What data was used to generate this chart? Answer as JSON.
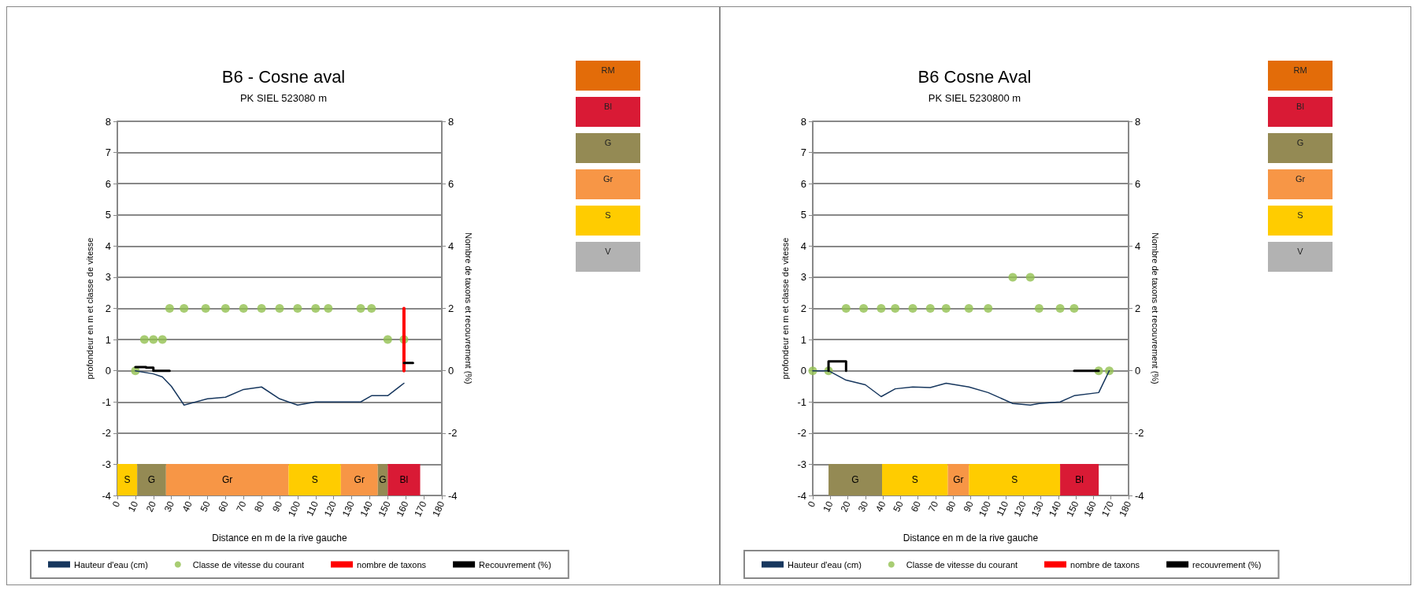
{
  "chart_data": [
    {
      "type": "line",
      "title": "B6 - Cosne aval",
      "subtitle": "PK SIEL 523080 m",
      "xlabel": "Distance en m de la rive gauche",
      "ylabel": "profondeur en m et classe de vitesse",
      "y2label": "Nombre de taxons et recouvrement (%)",
      "xlim": [
        0,
        180
      ],
      "xticks": [
        0,
        10,
        20,
        30,
        40,
        50,
        60,
        70,
        80,
        90,
        100,
        110,
        120,
        130,
        140,
        150,
        160,
        170,
        180
      ],
      "ylim": [
        -4,
        8
      ],
      "yticks": [
        -4,
        -3,
        -2,
        -1,
        0,
        1,
        2,
        3,
        4,
        5,
        6,
        7,
        8
      ],
      "y2lim": [
        -4,
        8
      ],
      "y2ticks": [
        -4,
        -2,
        0,
        2,
        4,
        6,
        8
      ],
      "grid": "y",
      "legend": "bottom",
      "series": [
        {
          "name": "Hauteur d'eau (cm)",
          "type": "line",
          "color": "#17375e",
          "x": [
            10,
            20,
            25,
            30,
            37,
            50,
            60,
            70,
            80,
            90,
            100,
            110,
            120,
            135,
            141,
            150,
            159
          ],
          "values": [
            0,
            -0.1,
            -0.2,
            -0.5,
            -1.1,
            -0.9,
            -0.85,
            -0.6,
            -0.52,
            -0.9,
            -1.1,
            -1.0,
            -1.0,
            -1.0,
            -0.8,
            -0.8,
            -0.4
          ]
        },
        {
          "name": "Classe de vitesse du courant",
          "type": "scatter",
          "marker": "circle",
          "color": "#92c050",
          "x": [
            10,
            15,
            20,
            25,
            29,
            37,
            49,
            60,
            70,
            80,
            90,
            100,
            110,
            117,
            135,
            141,
            150,
            159
          ],
          "values": [
            0,
            1,
            1,
            1,
            2,
            2,
            2,
            2,
            2,
            2,
            2,
            2,
            2,
            2,
            2,
            2,
            1,
            1
          ]
        },
        {
          "name": "nombre de taxons",
          "type": "line",
          "axis": "y2",
          "color": "#ff0000",
          "x": [
            159,
            159
          ],
          "values": [
            0,
            2
          ]
        },
        {
          "name": "Recouvrement (%)",
          "type": "line",
          "axis": "y2",
          "color": "#000000",
          "x": [
            10,
            16,
            16,
            20,
            20,
            29,
            null,
            159,
            164
          ],
          "values": [
            0.12,
            0.12,
            0.1,
            0.1,
            0,
            0,
            null,
            0.25,
            0.25
          ]
        }
      ]
    },
    {
      "type": "bar",
      "orientation": "horizontal",
      "categories": [
        null
      ],
      "xlim": [
        0,
        180
      ],
      "tick_labels": false,
      "series": [
        {
          "name": "S",
          "color": "#ffcc00",
          "base": [
            0
          ],
          "values": [
            11
          ]
        },
        {
          "name": "G",
          "color": "#948a54",
          "base": [
            11
          ],
          "values": [
            16
          ]
        },
        {
          "name": "Gr",
          "color": "#f79646",
          "base": [
            27
          ],
          "values": [
            68
          ]
        },
        {
          "name": "S",
          "color": "#ffcc00",
          "base": [
            95
          ],
          "values": [
            29
          ]
        },
        {
          "name": "Gr",
          "color": "#f79646",
          "base": [
            124
          ],
          "values": [
            20.5
          ]
        },
        {
          "name": "G",
          "color": "#948a54",
          "base": [
            144.5
          ],
          "values": [
            5.5
          ]
        },
        {
          "name": "Bl",
          "color": "#d91a35",
          "base": [
            150
          ],
          "values": [
            18
          ]
        }
      ]
    },
    {
      "type": "other",
      "annotations": [
        "RM",
        "Bl",
        "G",
        "Gr",
        "S",
        "V"
      ]
    },
    {
      "type": "line",
      "title": "B6 Cosne Aval",
      "subtitle": "PK SIEL 5230800 m",
      "xlabel": "Distance en m de la rive gauche",
      "ylabel": "profondeur en m et classe de vitesse",
      "y2label": "Nombre de taxons et recouvrement (%)",
      "xlim": [
        0,
        180
      ],
      "xticks": [
        0,
        10,
        20,
        30,
        40,
        50,
        60,
        70,
        80,
        90,
        100,
        110,
        120,
        130,
        140,
        150,
        160,
        170,
        180
      ],
      "ylim": [
        -4,
        8
      ],
      "yticks": [
        -4,
        -3,
        -2,
        -1,
        0,
        1,
        2,
        3,
        4,
        5,
        6,
        7,
        8
      ],
      "y2lim": [
        -4,
        8
      ],
      "y2ticks": [
        -4,
        -2,
        0,
        2,
        4,
        6,
        8
      ],
      "grid": "y",
      "legend": "bottom",
      "series": [
        {
          "name": "Hauteur d'eau (cm)",
          "type": "line",
          "color": "#17375e",
          "x": [
            0,
            9,
            19,
            30,
            39,
            47,
            57,
            67,
            76,
            89,
            100,
            114,
            124,
            129,
            141,
            149,
            163,
            169
          ],
          "values": [
            0,
            0,
            -0.3,
            -0.45,
            -0.83,
            -0.58,
            -0.52,
            -0.54,
            -0.4,
            -0.52,
            -0.7,
            -1.05,
            -1.1,
            -1.05,
            -1.0,
            -0.8,
            -0.7,
            0
          ]
        },
        {
          "name": "Classe de vitesse du courant",
          "type": "scatter",
          "marker": "circle",
          "color": "#92c050",
          "x": [
            0,
            9,
            19,
            29,
            39,
            47,
            57,
            67,
            76,
            89,
            100,
            114,
            124,
            129,
            141,
            149,
            163,
            169
          ],
          "values": [
            0,
            0,
            2,
            2,
            2,
            2,
            2,
            2,
            2,
            2,
            2,
            3,
            3,
            2,
            2,
            2,
            0,
            0
          ]
        },
        {
          "name": "nombre de taxons",
          "type": "line",
          "axis": "y2",
          "color": "#ff0000"
        },
        {
          "name": "recouvrement (%)",
          "type": "line",
          "axis": "y2",
          "color": "#000000",
          "x": [
            9,
            9,
            19,
            19,
            null,
            149,
            163
          ],
          "values": [
            0,
            0.3,
            0.3,
            0,
            null,
            0,
            0
          ]
        }
      ]
    },
    {
      "type": "bar",
      "orientation": "horizontal",
      "categories": [
        null
      ],
      "xlim": [
        0,
        180
      ],
      "tick_labels": false,
      "series": [
        {
          "name": "G",
          "color": "#948a54",
          "base": [
            9
          ],
          "values": [
            30.5
          ]
        },
        {
          "name": "S",
          "color": "#ffcc00",
          "base": [
            39.5
          ],
          "values": [
            37.5
          ]
        },
        {
          "name": "Gr",
          "color": "#f79646",
          "base": [
            77
          ],
          "values": [
            12
          ]
        },
        {
          "name": "S",
          "color": "#ffcc00",
          "base": [
            89
          ],
          "values": [
            52
          ]
        },
        {
          "name": "Bl",
          "color": "#d91a35",
          "base": [
            141
          ],
          "values": [
            22
          ]
        }
      ]
    },
    {
      "type": "other",
      "annotations": [
        "RM",
        "Bl",
        "G",
        "Gr",
        "S",
        "V"
      ]
    }
  ]
}
